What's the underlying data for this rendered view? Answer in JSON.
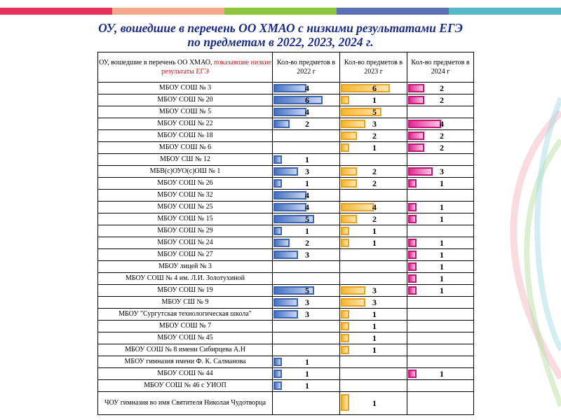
{
  "colors": {
    "stripes": [
      "#e4335a",
      "#f5a88c",
      "#8cc63f",
      "#5b6fb5",
      "#56b7c9"
    ],
    "title": "#1a2b86",
    "highlight": "#c0141c",
    "bar_2022": "#4470c0",
    "bar_2023": "#f4b733",
    "bar_2024": "#e02c90"
  },
  "title": {
    "line1": "ОУ, вошедшие в перечень ОО ХМАО с низкими результатами ЕГЭ",
    "line2": "по предметам в 2022, 2023, 2024 г."
  },
  "headers": {
    "school_a": "ОУ, вошедшие в перечень ОО ХМАО, ",
    "school_b": "показавшие низкие результаты ЕГЭ",
    "y2022": "Кол-во предметов в 2022 г",
    "y2023": "Кол-во предметов в 2023 г",
    "y2024": "Кол-во предметов в 2024 г"
  },
  "chart_data": {
    "type": "bar",
    "orientation": "horizontal",
    "title": "ОУ, вошедшие в перечень ОО ХМАО с низкими результатами ЕГЭ по предметам в 2022, 2023, 2024 г.",
    "xlim": [
      0,
      6
    ],
    "series_names": [
      "Кол-во предметов в 2022 г",
      "Кол-во предметов в 2023 г",
      "Кол-во предметов в 2024 г"
    ],
    "categories": [
      "МБОУ СОШ № 3",
      "МБОУ СОШ № 20",
      "МБОУ СОШ № 5",
      "МБОУ СОШ № 22",
      "МБОУ СОШ № 18",
      "МБОУ СОШ № 6",
      "МБОУ СШ № 12",
      "МБВ(с)ОУО(с)ОШ № 1",
      "МБОУ СОШ № 26",
      "МБОУ СОШ № 32",
      "МБОУ СОШ № 25",
      "МБОУ СОШ № 15",
      "МБОУ СОШ № 29",
      "МБОУ СОШ № 24",
      "МБОУ СОШ № 27",
      "МБОУ лицей № 3",
      "МБОУ СОШ № 4 им. Л.И. Золотухиной",
      "МБОУ СОШ № 19",
      "МБОУ СШ № 9",
      "МБОУ \"Сургутская технологическая школа\"",
      "МБОУ СОШ № 7",
      "МБОУ СОШ № 45",
      "МБОУ СОШ № 8 имени Сибирцева А.Н",
      "МБОУ гимназия имени Ф. К. Салманова",
      "МБОУ СОШ № 44",
      "МБОУ СОШ № 46 с УИОП",
      "ЧОУ гимназия во имя Святителя Николая Чудотворца"
    ],
    "series": [
      {
        "name": "2022",
        "values": [
          4,
          6,
          4,
          2,
          null,
          null,
          1,
          3,
          1,
          4,
          4,
          5,
          1,
          2,
          3,
          null,
          null,
          5,
          3,
          3,
          null,
          null,
          null,
          1,
          1,
          1,
          null
        ]
      },
      {
        "name": "2023",
        "values": [
          6,
          1,
          5,
          3,
          2,
          1,
          null,
          2,
          2,
          null,
          4,
          2,
          1,
          1,
          null,
          null,
          null,
          3,
          3,
          1,
          1,
          1,
          1,
          null,
          null,
          null,
          1
        ]
      },
      {
        "name": "2024",
        "values": [
          2,
          2,
          null,
          4,
          2,
          2,
          null,
          3,
          1,
          null,
          1,
          1,
          null,
          1,
          1,
          1,
          1,
          1,
          null,
          null,
          null,
          null,
          null,
          null,
          1,
          null,
          null
        ]
      }
    ]
  }
}
